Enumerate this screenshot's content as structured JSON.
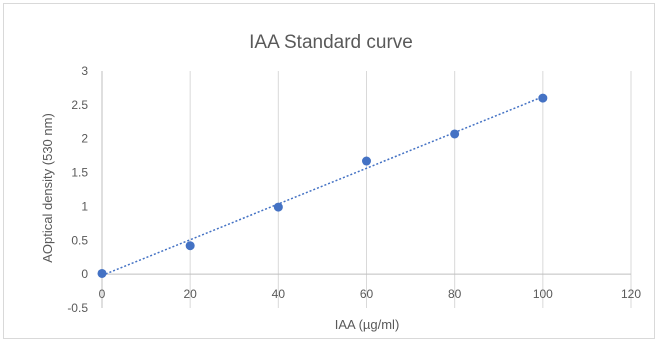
{
  "chart_data": {
    "type": "scatter",
    "title": "IAA Standard curve",
    "xlabel": "IAA (µg/ml)",
    "ylabel": "AOptical density (530 nm)",
    "xlim": [
      0,
      120
    ],
    "ylim": [
      -0.5,
      3
    ],
    "x_ticks": [
      0,
      20,
      40,
      60,
      80,
      100,
      120
    ],
    "y_ticks": [
      -0.5,
      0,
      0.5,
      1,
      1.5,
      2,
      2.5,
      3
    ],
    "x_tick_labels": [
      "0",
      "20",
      "40",
      "60",
      "80",
      "100",
      "120"
    ],
    "y_tick_labels": [
      "-0.5",
      "0",
      "0.5",
      "1",
      "1.5",
      "2",
      "2.5",
      "3"
    ],
    "grid": "vertical",
    "legend": "none",
    "series": [
      {
        "x": [
          0,
          20,
          40,
          60,
          80,
          100
        ],
        "y": [
          0.01,
          0.42,
          0.99,
          1.67,
          2.07,
          2.6
        ],
        "color": "#4472c4"
      }
    ],
    "trendline": {
      "style": "dotted",
      "color": "#4472c4",
      "x": [
        0,
        100
      ],
      "y": [
        -0.02,
        2.62
      ]
    }
  }
}
